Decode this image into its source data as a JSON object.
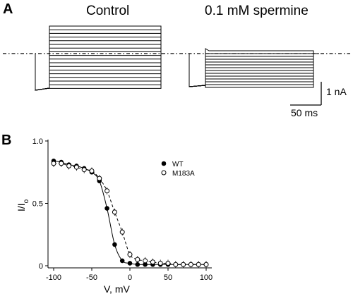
{
  "panels": {
    "a": {
      "letter": "A",
      "conditions": [
        {
          "label": "Control"
        },
        {
          "label": "0.1 mM spermine"
        }
      ],
      "scale_bar": {
        "current": "1 nA",
        "time": "50 ms"
      }
    },
    "b": {
      "letter": "B"
    }
  },
  "chart_data": {
    "type": "scatter",
    "xlabel": "V, mV",
    "ylabel": "I/I",
    "ylabel_subscript": "o",
    "xlim": [
      -105,
      105
    ],
    "ylim": [
      -0.02,
      1.0
    ],
    "xticks": [
      -100,
      -50,
      0,
      50,
      100
    ],
    "yticks": [
      0,
      0.5,
      1.0
    ],
    "ytick_labels": [
      "0",
      "0.5",
      "1.0"
    ],
    "grid": false,
    "legend": "top-right",
    "series": [
      {
        "name": "WT",
        "marker": "filled-circle",
        "line": "solid",
        "x": [
          -100,
          -90,
          -80,
          -70,
          -60,
          -50,
          -40,
          -30,
          -20,
          -10,
          0,
          10,
          20,
          30,
          40,
          50,
          60,
          70,
          80,
          90,
          100
        ],
        "y": [
          0.84,
          0.83,
          0.81,
          0.8,
          0.78,
          0.75,
          0.68,
          0.46,
          0.17,
          0.04,
          0.02,
          0.01,
          0.01,
          0.01,
          0.01,
          0.01,
          0.01,
          0.01,
          0.01,
          0.01,
          0.01
        ]
      },
      {
        "name": "M183A",
        "marker": "open-circle",
        "line": "dashed",
        "x": [
          -100,
          -90,
          -80,
          -70,
          -60,
          -50,
          -40,
          -30,
          -20,
          -10,
          0,
          10,
          20,
          30,
          40,
          50,
          60,
          70,
          80,
          90,
          100
        ],
        "y": [
          0.82,
          0.82,
          0.8,
          0.79,
          0.77,
          0.76,
          0.7,
          0.6,
          0.43,
          0.27,
          0.09,
          0.05,
          0.04,
          0.03,
          0.02,
          0.02,
          0.01,
          0.01,
          0.01,
          0.01,
          0.01
        ]
      }
    ]
  }
}
